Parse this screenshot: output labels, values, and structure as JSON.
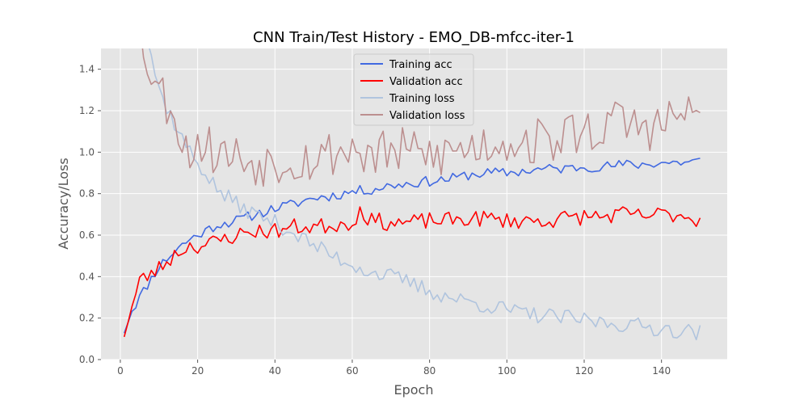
{
  "chart_data": {
    "type": "line",
    "title": "CNN Train/Test History -  EMO_DB-mfcc-iter-1",
    "xlabel": "Epoch",
    "ylabel": "Accuracy/Loss",
    "xlim": [
      -5,
      157
    ],
    "ylim": [
      0,
      1.5
    ],
    "xticks": [
      0,
      20,
      40,
      60,
      80,
      100,
      120,
      140
    ],
    "yticks": [
      0.0,
      0.2,
      0.4,
      0.6,
      0.8,
      1.0,
      1.2,
      1.4
    ],
    "ytick_labels": [
      "0.0",
      "0.2",
      "0.4",
      "0.6",
      "0.8",
      "1.0",
      "1.2",
      "1.4"
    ],
    "grid": true,
    "legend_position": "top-center",
    "background": "#e5e5e5",
    "series": [
      {
        "name": "Training acc",
        "color": "#4169e1",
        "anchors": [
          [
            1,
            0.14
          ],
          [
            3,
            0.24
          ],
          [
            5,
            0.3
          ],
          [
            7,
            0.36
          ],
          [
            10,
            0.45
          ],
          [
            15,
            0.54
          ],
          [
            18,
            0.58
          ],
          [
            22,
            0.62
          ],
          [
            25,
            0.65
          ],
          [
            30,
            0.67
          ],
          [
            35,
            0.7
          ],
          [
            40,
            0.73
          ],
          [
            45,
            0.75
          ],
          [
            50,
            0.78
          ],
          [
            55,
            0.79
          ],
          [
            60,
            0.81
          ],
          [
            65,
            0.82
          ],
          [
            70,
            0.84
          ],
          [
            75,
            0.85
          ],
          [
            80,
            0.86
          ],
          [
            85,
            0.87
          ],
          [
            90,
            0.89
          ],
          [
            95,
            0.9
          ],
          [
            100,
            0.9
          ],
          [
            105,
            0.91
          ],
          [
            110,
            0.92
          ],
          [
            115,
            0.92
          ],
          [
            120,
            0.93
          ],
          [
            125,
            0.93
          ],
          [
            130,
            0.94
          ],
          [
            135,
            0.94
          ],
          [
            140,
            0.95
          ],
          [
            145,
            0.95
          ],
          [
            150,
            0.96
          ]
        ],
        "noise": 0.025,
        "seed": 11
      },
      {
        "name": "Validation acc",
        "color": "#ff0000",
        "anchors": [
          [
            1,
            0.13
          ],
          [
            3,
            0.25
          ],
          [
            5,
            0.38
          ],
          [
            7,
            0.4
          ],
          [
            10,
            0.44
          ],
          [
            15,
            0.52
          ],
          [
            18,
            0.55
          ],
          [
            22,
            0.55
          ],
          [
            25,
            0.57
          ],
          [
            30,
            0.6
          ],
          [
            35,
            0.62
          ],
          [
            40,
            0.62
          ],
          [
            45,
            0.64
          ],
          [
            50,
            0.64
          ],
          [
            55,
            0.65
          ],
          [
            60,
            0.66
          ],
          [
            62,
            0.72
          ],
          [
            65,
            0.67
          ],
          [
            70,
            0.66
          ],
          [
            75,
            0.66
          ],
          [
            80,
            0.67
          ],
          [
            85,
            0.67
          ],
          [
            90,
            0.68
          ],
          [
            95,
            0.68
          ],
          [
            100,
            0.67
          ],
          [
            105,
            0.67
          ],
          [
            110,
            0.67
          ],
          [
            115,
            0.68
          ],
          [
            120,
            0.69
          ],
          [
            125,
            0.69
          ],
          [
            130,
            0.7
          ],
          [
            135,
            0.69
          ],
          [
            140,
            0.7
          ],
          [
            145,
            0.7
          ],
          [
            150,
            0.67
          ]
        ],
        "noise": 0.04,
        "seed": 23
      },
      {
        "name": "Training loss",
        "color": "#b0c4de",
        "anchors": [
          [
            1,
            1.9
          ],
          [
            4,
            1.7
          ],
          [
            7,
            1.55
          ],
          [
            10,
            1.3
          ],
          [
            15,
            1.1
          ],
          [
            18,
            1.0
          ],
          [
            22,
            0.9
          ],
          [
            25,
            0.82
          ],
          [
            30,
            0.75
          ],
          [
            35,
            0.7
          ],
          [
            40,
            0.66
          ],
          [
            45,
            0.61
          ],
          [
            50,
            0.55
          ],
          [
            55,
            0.5
          ],
          [
            60,
            0.46
          ],
          [
            65,
            0.42
          ],
          [
            70,
            0.4
          ],
          [
            75,
            0.37
          ],
          [
            80,
            0.33
          ],
          [
            85,
            0.3
          ],
          [
            90,
            0.28
          ],
          [
            95,
            0.26
          ],
          [
            100,
            0.24
          ],
          [
            105,
            0.22
          ],
          [
            110,
            0.21
          ],
          [
            115,
            0.2
          ],
          [
            120,
            0.19
          ],
          [
            125,
            0.18
          ],
          [
            130,
            0.17
          ],
          [
            135,
            0.16
          ],
          [
            140,
            0.15
          ],
          [
            145,
            0.14
          ],
          [
            150,
            0.13
          ]
        ],
        "noise": 0.04,
        "seed": 37
      },
      {
        "name": "Validation loss",
        "color": "#bc8f8f",
        "anchors": [
          [
            1,
            1.9
          ],
          [
            4,
            1.65
          ],
          [
            7,
            1.45
          ],
          [
            10,
            1.3
          ],
          [
            14,
            1.2
          ],
          [
            17,
            1.0
          ],
          [
            20,
            1.05
          ],
          [
            25,
            1.0
          ],
          [
            30,
            0.98
          ],
          [
            35,
            0.95
          ],
          [
            40,
            0.96
          ],
          [
            45,
            0.97
          ],
          [
            50,
            0.97
          ],
          [
            55,
            1.0
          ],
          [
            60,
            1.02
          ],
          [
            65,
            0.98
          ],
          [
            70,
            1.0
          ],
          [
            75,
            1.0
          ],
          [
            80,
            0.98
          ],
          [
            85,
            1.0
          ],
          [
            90,
            1.02
          ],
          [
            95,
            1.04
          ],
          [
            100,
            1.06
          ],
          [
            105,
            1.05
          ],
          [
            110,
            1.05
          ],
          [
            115,
            1.08
          ],
          [
            120,
            1.1
          ],
          [
            125,
            1.12
          ],
          [
            130,
            1.15
          ],
          [
            135,
            1.12
          ],
          [
            140,
            1.13
          ],
          [
            145,
            1.18
          ],
          [
            150,
            1.18
          ]
        ],
        "noise": 0.12,
        "seed": 53
      }
    ]
  }
}
